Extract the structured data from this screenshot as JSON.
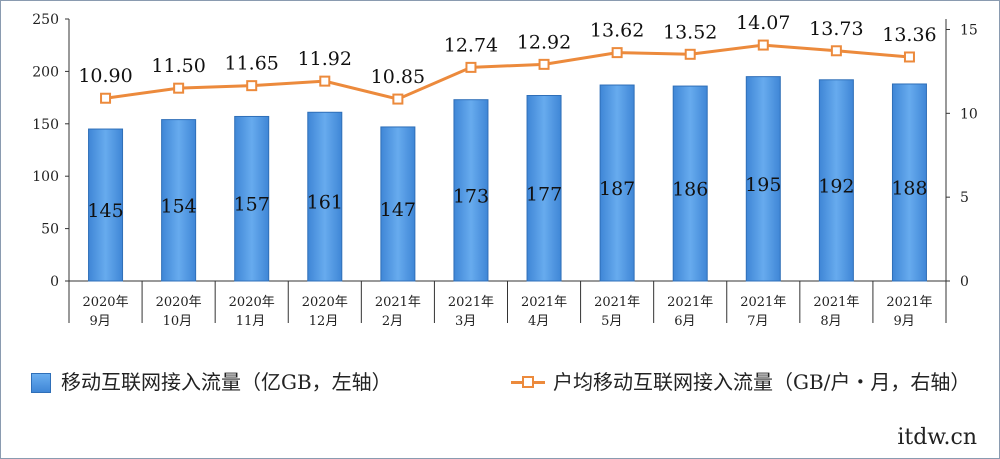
{
  "chart_data": {
    "type": "bar+line",
    "categories": [
      [
        "2020年",
        "9月"
      ],
      [
        "2020年",
        "10月"
      ],
      [
        "2020年",
        "11月"
      ],
      [
        "2020年",
        "12月"
      ],
      [
        "2021年",
        "2月"
      ],
      [
        "2021年",
        "3月"
      ],
      [
        "2021年",
        "4月"
      ],
      [
        "2021年",
        "5月"
      ],
      [
        "2021年",
        "6月"
      ],
      [
        "2021年",
        "7月"
      ],
      [
        "2021年",
        "8月"
      ],
      [
        "2021年",
        "9月"
      ]
    ],
    "series": [
      {
        "name": "移动互联网接入流量（亿GB，左轴）",
        "kind": "bar",
        "axis": "left",
        "values": [
          145,
          154,
          157,
          161,
          147,
          173,
          177,
          187,
          186,
          195,
          192,
          188
        ],
        "labels": [
          "145",
          "154",
          "157",
          "161",
          "147",
          "173",
          "177",
          "187",
          "186",
          "195",
          "192",
          "188"
        ],
        "color": "#4f97e0"
      },
      {
        "name": "户均移动互联网接入流量（GB/户・月，右轴）",
        "kind": "line",
        "axis": "right",
        "values": [
          10.9,
          11.5,
          11.65,
          11.92,
          10.85,
          12.74,
          12.92,
          13.62,
          13.52,
          14.07,
          13.73,
          13.36
        ],
        "labels": [
          "10.90",
          "11.50",
          "11.65",
          "11.92",
          "10.85",
          "12.74",
          "12.92",
          "13.62",
          "13.52",
          "14.07",
          "13.73",
          "13.36"
        ],
        "color": "#ec8a3c"
      }
    ],
    "y_left": {
      "range": [
        0,
        250
      ],
      "ticks": [
        "0",
        "50",
        "100",
        "150",
        "200",
        "250"
      ]
    },
    "y_right": {
      "range": [
        0,
        15.625
      ],
      "ticks": [
        "0",
        "5",
        "10",
        "15"
      ]
    },
    "grid": false,
    "legend_position": "bottom"
  },
  "legend": {
    "bar_text": "移动互联网接入流量（亿GB，左轴）",
    "line_text": "户均移动互联网接入流量（GB/户・月，右轴）"
  },
  "watermark": "itdw.cn"
}
